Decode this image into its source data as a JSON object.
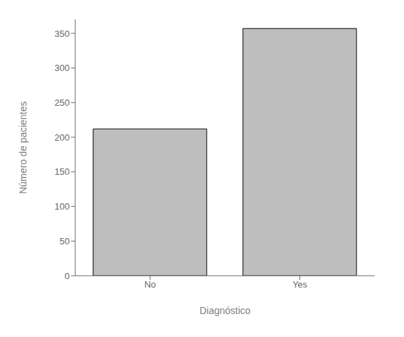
{
  "chart_data": {
    "type": "bar",
    "categories": [
      "No",
      "Yes"
    ],
    "values": [
      212,
      357
    ],
    "color": "#bebebe",
    "xlabel": "Diagnóstico",
    "ylabel": "Número de pacientes",
    "ylim": [
      0,
      370
    ],
    "yticks": [
      0,
      50,
      100,
      150,
      200,
      250,
      300,
      350
    ]
  }
}
